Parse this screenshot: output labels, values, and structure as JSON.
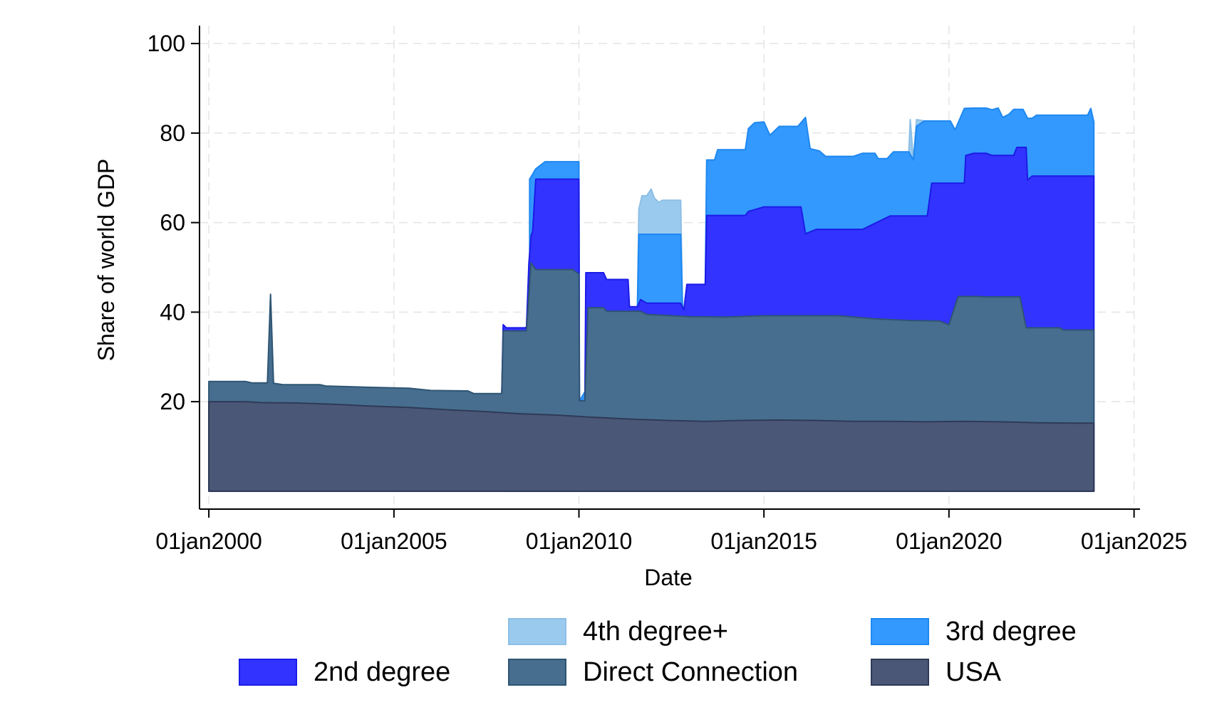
{
  "chart_data": {
    "type": "area",
    "stacked": true,
    "xlabel": "Date",
    "ylabel": "Share of world GDP",
    "xlim": [
      "1999-10-01",
      "2025-03-01"
    ],
    "ylim": [
      -4,
      104
    ],
    "x_ticks": [
      "2000-01-01",
      "2005-01-01",
      "2010-01-01",
      "2015-01-01",
      "2020-01-01",
      "2025-01-01"
    ],
    "x_tick_labels": [
      "01jan2000",
      "01jan2005",
      "01jan2010",
      "01jan2015",
      "01jan2020",
      "01jan2025"
    ],
    "y_ticks": [
      20,
      40,
      60,
      80,
      100
    ],
    "y_tick_labels": [
      "20",
      "40",
      "60",
      "80",
      "100"
    ],
    "grid": true,
    "legend_position": "bottom",
    "series": [
      {
        "name": "4th degree+",
        "color": "#9ACBEF",
        "points": [
          [
            "2011-08-01",
            41.3
          ],
          [
            "2011-08-15",
            63
          ],
          [
            "2011-09-15",
            66
          ],
          [
            "2011-11-01",
            66
          ],
          [
            "2011-12-15",
            67.5
          ],
          [
            "2012-01-15",
            65.5
          ],
          [
            "2012-03-01",
            64.5
          ],
          [
            "2012-04-01",
            65
          ],
          [
            "2012-10-01",
            65
          ],
          [
            "2012-10-20",
            40.5
          ],
          [
            "2018-12-01",
            75.8
          ],
          [
            "2018-12-15",
            83
          ],
          [
            "2019-01-15",
            74
          ],
          [
            "2019-02-15",
            83
          ],
          [
            "2019-05-01",
            82.7
          ]
        ]
      },
      {
        "name": "3rd degree",
        "color": "#3399FF",
        "points": [
          [
            "2008-09-01",
            69.7
          ],
          [
            "2008-11-01",
            72
          ],
          [
            "2009-02-01",
            73.6
          ],
          [
            "2010-01-01",
            73.6
          ],
          [
            "2010-01-06",
            20.2
          ],
          [
            "2011-08-01",
            41.3
          ],
          [
            "2011-08-15",
            57.4
          ],
          [
            "2012-10-01",
            57.4
          ],
          [
            "2012-10-20",
            40.5
          ],
          [
            "2013-06-01",
            46.2
          ],
          [
            "2013-06-15",
            74
          ],
          [
            "2013-09-01",
            74
          ],
          [
            "2013-10-01",
            76.3
          ],
          [
            "2014-07-01",
            76.3
          ],
          [
            "2014-08-01",
            81
          ],
          [
            "2014-10-01",
            82.3
          ],
          [
            "2015-01-01",
            82.5
          ],
          [
            "2015-03-01",
            79.5
          ],
          [
            "2015-06-01",
            81.5
          ],
          [
            "2015-12-01",
            81.5
          ],
          [
            "2016-02-15",
            83.5
          ],
          [
            "2016-04-01",
            76.5
          ],
          [
            "2016-07-01",
            76
          ],
          [
            "2016-09-01",
            74.8
          ],
          [
            "2017-06-01",
            74.8
          ],
          [
            "2017-09-01",
            75.5
          ],
          [
            "2018-01-01",
            75.5
          ],
          [
            "2018-02-01",
            74.3
          ],
          [
            "2018-05-01",
            74.3
          ],
          [
            "2018-07-01",
            75.8
          ],
          [
            "2018-12-01",
            75.8
          ],
          [
            "2019-01-15",
            74
          ],
          [
            "2019-02-15",
            81.5
          ],
          [
            "2019-05-01",
            82.7
          ],
          [
            "2019-10-01",
            82.7
          ],
          [
            "2020-01-15",
            82.7
          ],
          [
            "2020-03-01",
            80.7
          ],
          [
            "2020-06-01",
            85.5
          ],
          [
            "2020-09-01",
            85.6
          ],
          [
            "2021-01-01",
            85.6
          ],
          [
            "2021-03-01",
            85.2
          ],
          [
            "2021-05-01",
            85.6
          ],
          [
            "2021-06-15",
            83.5
          ],
          [
            "2021-08-15",
            84.2
          ],
          [
            "2021-10-01",
            85.3
          ],
          [
            "2022-01-01",
            85.3
          ],
          [
            "2022-02-15",
            83.3
          ],
          [
            "2022-04-01",
            83.3
          ],
          [
            "2022-05-15",
            84
          ],
          [
            "2023-07-01",
            84
          ],
          [
            "2023-10-01",
            84
          ],
          [
            "2023-11-01",
            85.5
          ],
          [
            "2023-12-01",
            82.5
          ]
        ]
      },
      {
        "name": "2nd degree",
        "color": "#3333FF",
        "points": [
          [
            "2007-12-01",
            21.8
          ],
          [
            "2007-12-15",
            37.2
          ],
          [
            "2008-01-15",
            36.5
          ],
          [
            "2008-07-15",
            36.5
          ],
          [
            "2008-08-01",
            36.6
          ],
          [
            "2008-08-25",
            51
          ],
          [
            "2008-09-15",
            57
          ],
          [
            "2008-10-01",
            58
          ],
          [
            "2008-11-01",
            69.7
          ],
          [
            "2010-01-01",
            69.7
          ],
          [
            "2010-01-06",
            20.2
          ],
          [
            "2010-03-01",
            20.2
          ],
          [
            "2010-03-10",
            48.8
          ],
          [
            "2010-09-01",
            48.8
          ],
          [
            "2010-10-01",
            47.3
          ],
          [
            "2011-05-01",
            47.3
          ],
          [
            "2011-05-15",
            41.2
          ],
          [
            "2011-08-01",
            41.2
          ],
          [
            "2011-09-01",
            42.8
          ],
          [
            "2011-11-01",
            42
          ],
          [
            "2012-10-01",
            42
          ],
          [
            "2012-11-01",
            40.5
          ],
          [
            "2012-12-01",
            46.2
          ],
          [
            "2013-06-01",
            46.2
          ],
          [
            "2013-06-15",
            61.6
          ],
          [
            "2014-07-01",
            61.6
          ],
          [
            "2014-08-01",
            62.5
          ],
          [
            "2015-01-01",
            63.5
          ],
          [
            "2016-01-01",
            63.5
          ],
          [
            "2016-02-15",
            57.5
          ],
          [
            "2016-06-01",
            58.5
          ],
          [
            "2017-09-01",
            58.5
          ],
          [
            "2017-12-01",
            59.5
          ],
          [
            "2018-06-01",
            61.5
          ],
          [
            "2019-06-01",
            61.5
          ],
          [
            "2019-07-15",
            68.8
          ],
          [
            "2020-06-01",
            68.8
          ],
          [
            "2020-06-15",
            75
          ],
          [
            "2020-09-01",
            75.5
          ],
          [
            "2021-01-01",
            75.5
          ],
          [
            "2021-03-01",
            75
          ],
          [
            "2021-10-01",
            75
          ],
          [
            "2021-11-01",
            76.8
          ],
          [
            "2022-02-01",
            76.8
          ],
          [
            "2022-02-15",
            69.5
          ],
          [
            "2022-04-01",
            70.4
          ],
          [
            "2023-12-01",
            70.4
          ]
        ]
      },
      {
        "name": "Direct Connection",
        "color": "#476E8F",
        "points": [
          [
            "2000-01-01",
            24.5
          ],
          [
            "2001-01-01",
            24.5
          ],
          [
            "2001-03-01",
            24.2
          ],
          [
            "2001-08-01",
            24.2
          ],
          [
            "2001-09-01",
            44
          ],
          [
            "2001-10-01",
            24.1
          ],
          [
            "2002-01-01",
            23.8
          ],
          [
            "2003-01-01",
            23.8
          ],
          [
            "2003-03-01",
            23.5
          ],
          [
            "2004-06-01",
            23.2
          ],
          [
            "2005-06-01",
            23
          ],
          [
            "2006-01-01",
            22.5
          ],
          [
            "2007-01-01",
            22.4
          ],
          [
            "2007-03-01",
            21.8
          ],
          [
            "2007-12-01",
            21.8
          ],
          [
            "2007-12-15",
            35.8
          ],
          [
            "2008-08-01",
            35.8
          ],
          [
            "2008-09-15",
            51
          ],
          [
            "2008-11-01",
            49.5
          ],
          [
            "2009-11-01",
            49.5
          ],
          [
            "2010-01-01",
            48.5
          ],
          [
            "2010-01-06",
            20.2
          ],
          [
            "2010-03-01",
            20.2
          ],
          [
            "2010-04-01",
            41
          ],
          [
            "2010-09-01",
            41
          ],
          [
            "2010-10-01",
            40.2
          ],
          [
            "2011-09-01",
            40.2
          ],
          [
            "2011-11-01",
            39.5
          ],
          [
            "2013-01-01",
            39
          ],
          [
            "2014-01-01",
            38.9
          ],
          [
            "2015-01-01",
            39.2
          ],
          [
            "2017-01-01",
            39.2
          ],
          [
            "2018-01-01",
            38.5
          ],
          [
            "2019-01-01",
            38.1
          ],
          [
            "2019-10-01",
            38
          ],
          [
            "2020-01-01",
            37.2
          ],
          [
            "2020-04-01",
            43.5
          ],
          [
            "2020-10-01",
            43.5
          ],
          [
            "2021-01-01",
            43.4
          ],
          [
            "2021-12-01",
            43.4
          ],
          [
            "2022-02-01",
            36.5
          ],
          [
            "2023-01-01",
            36.5
          ],
          [
            "2023-02-01",
            36
          ],
          [
            "2023-12-01",
            36
          ]
        ]
      },
      {
        "name": "USA",
        "color": "#4B5776",
        "points": [
          [
            "2000-01-01",
            20
          ],
          [
            "2001-01-01",
            20
          ],
          [
            "2001-06-01",
            19.8
          ],
          [
            "2002-06-01",
            19.7
          ],
          [
            "2003-06-01",
            19.4
          ],
          [
            "2004-06-01",
            19
          ],
          [
            "2005-06-01",
            18.7
          ],
          [
            "2006-06-01",
            18.2
          ],
          [
            "2007-06-01",
            17.8
          ],
          [
            "2008-06-01",
            17.3
          ],
          [
            "2009-06-01",
            17
          ],
          [
            "2010-06-01",
            16.5
          ],
          [
            "2011-06-01",
            16.1
          ],
          [
            "2012-06-01",
            15.8
          ],
          [
            "2013-06-01",
            15.6
          ],
          [
            "2014-06-01",
            15.8
          ],
          [
            "2015-06-01",
            15.9
          ],
          [
            "2016-06-01",
            15.8
          ],
          [
            "2017-06-01",
            15.6
          ],
          [
            "2018-06-01",
            15.6
          ],
          [
            "2019-06-01",
            15.5
          ],
          [
            "2020-06-01",
            15.6
          ],
          [
            "2021-06-01",
            15.5
          ],
          [
            "2022-06-01",
            15.3
          ],
          [
            "2023-06-01",
            15.2
          ],
          [
            "2023-12-01",
            15.2
          ]
        ]
      }
    ],
    "legend": [
      {
        "label": "4th degree+",
        "color": "#9ACBEF",
        "border": "#8DBEE6"
      },
      {
        "label": "3rd degree",
        "color": "#3399FF",
        "border": "#1E88F0"
      },
      {
        "label": "2nd degree",
        "color": "#3333FF",
        "border": "#1B1BE6"
      },
      {
        "label": "Direct Connection",
        "color": "#476E8F",
        "border": "#2F5573"
      },
      {
        "label": "USA",
        "color": "#4B5776",
        "border": "#2E3A57"
      }
    ]
  }
}
